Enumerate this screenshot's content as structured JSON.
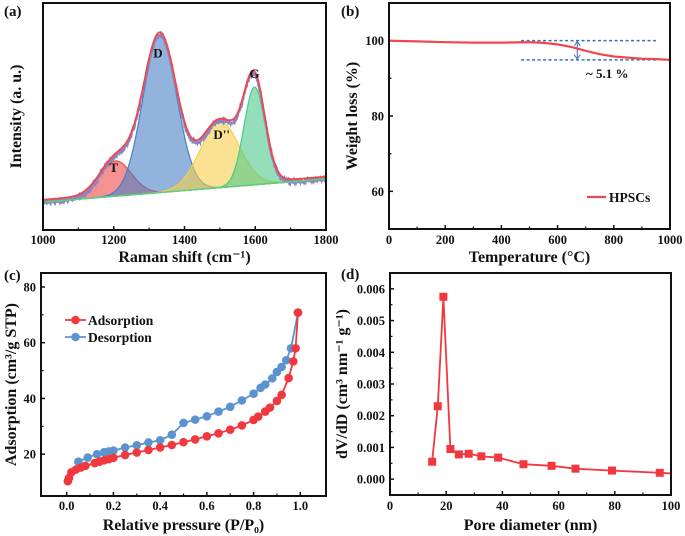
{
  "chart_data": [
    {
      "panel_label": "(a)",
      "type": "area",
      "xlabel": "Raman shift (cm⁻¹)",
      "ylabel": "Intensity (a. u.)",
      "xlim": [
        1000,
        1800
      ],
      "ylim": [
        0,
        1
      ],
      "xticks": [
        1000,
        1200,
        1400,
        1600,
        1800
      ],
      "yticks": [],
      "baseline": {
        "x": [
          1000,
          1800
        ],
        "y": [
          0.123,
          0.225
        ]
      },
      "peaks": [
        {
          "name": "T",
          "center": 1205,
          "amplitude": 0.155,
          "width": 45,
          "color": "#f04848",
          "label_pos": [
            1200,
            0.255
          ]
        },
        {
          "name": "D",
          "center": 1330,
          "amplitude": 0.69,
          "width": 48,
          "color": "#4a80c4",
          "label_pos": [
            1325,
            0.76
          ]
        },
        {
          "name": "D''",
          "center": 1500,
          "amplitude": 0.29,
          "width": 55,
          "color": "#f7cf4a",
          "label_pos": [
            1505,
            0.4
          ]
        },
        {
          "name": "G",
          "center": 1598,
          "amplitude": 0.43,
          "width": 30,
          "color": "#4cc98a",
          "label_pos": [
            1598,
            0.67
          ]
        }
      ],
      "fit_color": "#f0474d",
      "raw_color": "#8b86c2"
    },
    {
      "panel_label": "(b)",
      "type": "line",
      "xlabel": "Temperature (°C)",
      "ylabel": "Weight loss (%)",
      "xlim": [
        0,
        1000
      ],
      "ylim": [
        50,
        110
      ],
      "xticks": [
        0,
        200,
        400,
        600,
        800,
        1000
      ],
      "yticks": [
        60,
        80,
        100
      ],
      "series": [
        {
          "name": "HPSCs",
          "color": "#f0474d",
          "x": [
            0,
            100,
            200,
            300,
            400,
            500,
            550,
            600,
            650,
            700,
            750,
            800,
            850,
            900,
            950,
            1000
          ],
          "y": [
            100,
            99.8,
            99.6,
            99.5,
            99.5,
            99.6,
            99.4,
            99.0,
            98.3,
            97.3,
            96.4,
            95.8,
            95.5,
            95.2,
            95.1,
            94.9
          ]
        }
      ],
      "reference_lines": {
        "y": [
          100,
          94.9
        ],
        "x_range": [
          470,
          950
        ],
        "color": "#3a6fb4"
      },
      "arrow_x": 670,
      "annotation": "~ 5.1 %",
      "legend": "bottom-right"
    },
    {
      "panel_label": "(c)",
      "type": "scatter",
      "xlabel": "Relative pressure (P/P₀)",
      "ylabel": "Adsorption (cm³/g STP)",
      "xlim": [
        -0.11,
        1.11
      ],
      "ylim": [
        5,
        85
      ],
      "xticks": [
        0.0,
        0.2,
        0.4,
        0.6,
        0.8,
        1.0
      ],
      "xticklabels": [
        "0.0",
        "0.2",
        "0.4",
        "0.6",
        "0.8",
        "1.0"
      ],
      "yticks": [
        20,
        40,
        60,
        80
      ],
      "series": [
        {
          "name": "Adsorption",
          "color": "#f2383f",
          "x": [
            0.005,
            0.01,
            0.02,
            0.04,
            0.06,
            0.08,
            0.12,
            0.14,
            0.16,
            0.18,
            0.2,
            0.25,
            0.3,
            0.35,
            0.4,
            0.45,
            0.5,
            0.55,
            0.6,
            0.65,
            0.7,
            0.75,
            0.8,
            0.82,
            0.85,
            0.87,
            0.9,
            0.92,
            0.95,
            0.97,
            0.98,
            0.99
          ],
          "y": [
            10.3,
            11.5,
            13.5,
            14.5,
            15.2,
            15.8,
            16.8,
            17.3,
            17.8,
            18.2,
            18.7,
            19.7,
            20.6,
            21.5,
            22.4,
            23.3,
            24.3,
            25.3,
            26.4,
            27.5,
            28.8,
            30.3,
            32.3,
            33.5,
            35.3,
            36.7,
            39.1,
            41.3,
            47.3,
            53.3,
            58.0,
            70.8
          ]
        },
        {
          "name": "Desorption",
          "color": "#5b93cf",
          "x": [
            0.99,
            0.96,
            0.94,
            0.92,
            0.9,
            0.88,
            0.85,
            0.83,
            0.8,
            0.75,
            0.7,
            0.65,
            0.6,
            0.55,
            0.5,
            0.45,
            0.4,
            0.35,
            0.3,
            0.25,
            0.2,
            0.18,
            0.16,
            0.13,
            0.09,
            0.05
          ],
          "y": [
            70.8,
            58.0,
            53.7,
            51.3,
            49.5,
            47.2,
            45.0,
            43.8,
            41.7,
            39.3,
            37.0,
            35.3,
            33.6,
            32.4,
            31.2,
            27.0,
            25.0,
            24.2,
            23.2,
            22.4,
            21.3,
            21.0,
            20.7,
            20.0,
            18.8,
            17.3
          ]
        }
      ],
      "legend": "top-left"
    },
    {
      "panel_label": "(d)",
      "type": "line",
      "xlabel": "Pore diameter (nm)",
      "ylabel": "dV/dD (cm³ nm⁻¹ g⁻¹)",
      "xlim": [
        0,
        100
      ],
      "ylim": [
        -0.0005,
        0.0065
      ],
      "xticks": [
        0,
        20,
        40,
        60,
        80,
        100
      ],
      "yticks": [
        0,
        0.001,
        0.002,
        0.003,
        0.004,
        0.005,
        0.006
      ],
      "yticklabels": [
        "0.000",
        "0.001",
        "0.002",
        "0.003",
        "0.004",
        "0.005",
        "0.006"
      ],
      "series": [
        {
          "color": "#f2383f",
          "x": [
            15,
            17,
            19,
            21.5,
            24.5,
            28,
            32.5,
            38.5,
            47.5,
            57.5,
            66,
            79,
            96
          ],
          "y": [
            0.00055,
            0.0023,
            0.00575,
            0.00095,
            0.00078,
            0.0008,
            0.00072,
            0.00068,
            0.00047,
            0.00042,
            0.00033,
            0.00027,
            0.0002
          ]
        }
      ],
      "line_end": [
        100,
        0.00018
      ]
    }
  ]
}
